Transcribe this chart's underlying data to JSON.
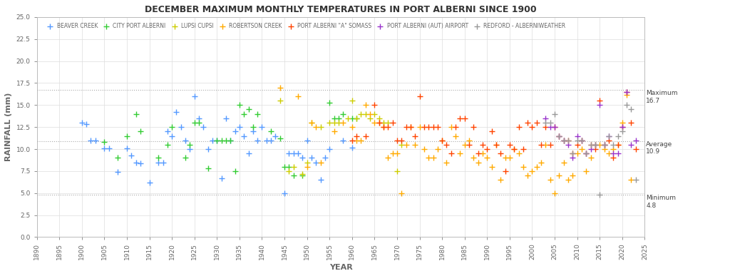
{
  "title": "DECEMBER MAXIMUM MONTHLY TEMPERATURES IN PORT ALBERNI SINCE 1900",
  "ylabel": "RAINFALL (mm)",
  "xlabel": "YEAR",
  "xlim": [
    1890,
    2025
  ],
  "ylim": [
    0,
    25
  ],
  "yticks": [
    0.0,
    2.5,
    5.0,
    7.5,
    10.0,
    12.5,
    15.0,
    17.5,
    20.0,
    22.5,
    25.0
  ],
  "xticks": [
    1890,
    1895,
    1900,
    1905,
    1910,
    1915,
    1920,
    1925,
    1930,
    1935,
    1940,
    1945,
    1950,
    1955,
    1960,
    1965,
    1970,
    1975,
    1980,
    1985,
    1990,
    1995,
    2000,
    2005,
    2010,
    2015,
    2020,
    2025
  ],
  "hlines": [
    {
      "y": 16.7,
      "label": "Maximum\n16.7"
    },
    {
      "y": 10.9,
      "label": "Average\n10.9"
    },
    {
      "y": 4.8,
      "label": "Minimum\n4.8"
    }
  ],
  "series": [
    {
      "name": "BEAVER CREEK",
      "color": "#5599ff",
      "data": [
        [
          1900,
          13.0
        ],
        [
          1901,
          12.8
        ],
        [
          1902,
          11.0
        ],
        [
          1903,
          11.0
        ],
        [
          1905,
          10.1
        ],
        [
          1906,
          10.1
        ],
        [
          1908,
          7.4
        ],
        [
          1910,
          10.1
        ],
        [
          1911,
          9.3
        ],
        [
          1912,
          8.5
        ],
        [
          1913,
          8.4
        ],
        [
          1915,
          6.2
        ],
        [
          1917,
          8.5
        ],
        [
          1918,
          8.5
        ],
        [
          1919,
          12.0
        ],
        [
          1920,
          11.5
        ],
        [
          1921,
          14.2
        ],
        [
          1922,
          12.5
        ],
        [
          1923,
          11.0
        ],
        [
          1924,
          10.0
        ],
        [
          1925,
          16.0
        ],
        [
          1926,
          13.5
        ],
        [
          1927,
          12.5
        ],
        [
          1928,
          10.0
        ],
        [
          1929,
          11.0
        ],
        [
          1930,
          11.0
        ],
        [
          1931,
          6.7
        ],
        [
          1932,
          13.5
        ],
        [
          1933,
          11.0
        ],
        [
          1934,
          12.0
        ],
        [
          1935,
          12.5
        ],
        [
          1936,
          11.5
        ],
        [
          1937,
          9.5
        ],
        [
          1938,
          12.0
        ],
        [
          1939,
          11.0
        ],
        [
          1940,
          12.5
        ],
        [
          1941,
          11.0
        ],
        [
          1942,
          11.0
        ],
        [
          1943,
          11.5
        ],
        [
          1945,
          5.0
        ],
        [
          1946,
          9.5
        ],
        [
          1947,
          9.5
        ],
        [
          1948,
          9.5
        ],
        [
          1949,
          9.0
        ],
        [
          1950,
          11.0
        ],
        [
          1951,
          9.0
        ],
        [
          1952,
          8.5
        ],
        [
          1953,
          6.5
        ],
        [
          1954,
          9.0
        ],
        [
          1955,
          10.0
        ],
        [
          1958,
          11.0
        ],
        [
          1960,
          10.2
        ]
      ]
    },
    {
      "name": "CITY PORT ALBERNI",
      "color": "#33cc33",
      "data": [
        [
          1905,
          10.8
        ],
        [
          1908,
          9.0
        ],
        [
          1910,
          11.5
        ],
        [
          1912,
          14.0
        ],
        [
          1913,
          12.0
        ],
        [
          1917,
          9.0
        ],
        [
          1919,
          10.5
        ],
        [
          1920,
          12.5
        ],
        [
          1923,
          9.0
        ],
        [
          1924,
          10.5
        ],
        [
          1925,
          13.0
        ],
        [
          1926,
          13.0
        ],
        [
          1928,
          7.8
        ],
        [
          1930,
          11.0
        ],
        [
          1931,
          11.0
        ],
        [
          1932,
          11.0
        ],
        [
          1933,
          11.0
        ],
        [
          1934,
          7.5
        ],
        [
          1935,
          15.0
        ],
        [
          1936,
          14.0
        ],
        [
          1937,
          14.5
        ],
        [
          1938,
          12.5
        ],
        [
          1939,
          14.0
        ],
        [
          1942,
          12.0
        ],
        [
          1944,
          11.2
        ],
        [
          1945,
          8.0
        ],
        [
          1946,
          8.0
        ],
        [
          1947,
          7.0
        ],
        [
          1949,
          7.0
        ],
        [
          1955,
          15.3
        ],
        [
          1956,
          13.5
        ],
        [
          1957,
          13.5
        ],
        [
          1958,
          14.0
        ],
        [
          1960,
          13.5
        ],
        [
          1961,
          13.5
        ]
      ]
    },
    {
      "name": "LUPSI CUPSI",
      "color": "#cccc00",
      "data": [
        [
          1944,
          15.5
        ],
        [
          1946,
          7.5
        ],
        [
          1947,
          8.0
        ],
        [
          1949,
          7.2
        ],
        [
          1950,
          8.5
        ],
        [
          1951,
          13.0
        ],
        [
          1953,
          12.5
        ],
        [
          1955,
          13.0
        ],
        [
          1956,
          13.0
        ],
        [
          1957,
          13.0
        ],
        [
          1959,
          13.5
        ],
        [
          1960,
          15.5
        ],
        [
          1961,
          13.5
        ],
        [
          1962,
          14.0
        ],
        [
          1963,
          14.0
        ],
        [
          1964,
          13.5
        ],
        [
          1965,
          14.0
        ],
        [
          1966,
          13.5
        ],
        [
          1967,
          13.0
        ],
        [
          1968,
          13.0
        ],
        [
          1970,
          7.5
        ],
        [
          1971,
          10.5
        ]
      ]
    },
    {
      "name": "ROBERTSON CREEK",
      "color": "#ffaa00",
      "data": [
        [
          1944,
          17.0
        ],
        [
          1948,
          16.0
        ],
        [
          1950,
          8.0
        ],
        [
          1951,
          13.0
        ],
        [
          1952,
          12.5
        ],
        [
          1953,
          8.5
        ],
        [
          1956,
          12.0
        ],
        [
          1958,
          13.0
        ],
        [
          1960,
          12.5
        ],
        [
          1961,
          11.0
        ],
        [
          1962,
          11.0
        ],
        [
          1963,
          15.0
        ],
        [
          1964,
          14.0
        ],
        [
          1965,
          13.0
        ],
        [
          1966,
          13.0
        ],
        [
          1967,
          12.5
        ],
        [
          1968,
          9.0
        ],
        [
          1969,
          9.5
        ],
        [
          1970,
          9.5
        ],
        [
          1971,
          5.0
        ],
        [
          1972,
          10.5
        ],
        [
          1973,
          12.5
        ],
        [
          1974,
          10.5
        ],
        [
          1975,
          12.5
        ],
        [
          1976,
          10.0
        ],
        [
          1977,
          9.0
        ],
        [
          1978,
          9.0
        ],
        [
          1979,
          10.0
        ],
        [
          1980,
          11.0
        ],
        [
          1981,
          8.5
        ],
        [
          1982,
          12.5
        ],
        [
          1983,
          11.5
        ],
        [
          1984,
          9.5
        ],
        [
          1985,
          10.5
        ],
        [
          1986,
          11.0
        ],
        [
          1987,
          9.0
        ],
        [
          1988,
          8.5
        ],
        [
          1989,
          9.5
        ],
        [
          1990,
          9.0
        ],
        [
          1991,
          8.0
        ],
        [
          1992,
          10.5
        ],
        [
          1993,
          6.5
        ],
        [
          1994,
          9.0
        ],
        [
          1995,
          9.0
        ],
        [
          1996,
          10.0
        ],
        [
          1997,
          9.5
        ],
        [
          1998,
          8.0
        ],
        [
          1999,
          7.0
        ],
        [
          2000,
          7.5
        ],
        [
          2001,
          8.0
        ],
        [
          2002,
          8.5
        ],
        [
          2003,
          10.5
        ],
        [
          2004,
          6.5
        ],
        [
          2005,
          5.0
        ],
        [
          2006,
          7.0
        ],
        [
          2007,
          8.5
        ],
        [
          2008,
          6.5
        ],
        [
          2009,
          7.0
        ],
        [
          2010,
          9.5
        ],
        [
          2011,
          10.0
        ],
        [
          2012,
          7.5
        ],
        [
          2013,
          9.0
        ],
        [
          2014,
          10.5
        ],
        [
          2015,
          10.5
        ],
        [
          2016,
          10.0
        ],
        [
          2017,
          9.5
        ],
        [
          2018,
          10.0
        ],
        [
          2019,
          10.5
        ],
        [
          2020,
          13.0
        ],
        [
          2021,
          16.2
        ],
        [
          2022,
          6.5
        ]
      ]
    },
    {
      "name": "PORT ALBERNI \"A\" SOMASS",
      "color": "#ff4400",
      "data": [
        [
          1960,
          11.0
        ],
        [
          1961,
          11.5
        ],
        [
          1963,
          11.5
        ],
        [
          1965,
          15.0
        ],
        [
          1966,
          13.0
        ],
        [
          1967,
          12.5
        ],
        [
          1968,
          12.5
        ],
        [
          1969,
          13.0
        ],
        [
          1970,
          11.0
        ],
        [
          1971,
          11.0
        ],
        [
          1972,
          12.5
        ],
        [
          1973,
          12.5
        ],
        [
          1974,
          11.5
        ],
        [
          1975,
          16.0
        ],
        [
          1976,
          12.5
        ],
        [
          1977,
          12.5
        ],
        [
          1978,
          12.5
        ],
        [
          1979,
          12.5
        ],
        [
          1980,
          11.0
        ],
        [
          1981,
          10.5
        ],
        [
          1982,
          9.5
        ],
        [
          1983,
          12.5
        ],
        [
          1984,
          13.5
        ],
        [
          1985,
          13.5
        ],
        [
          1986,
          10.5
        ],
        [
          1987,
          12.5
        ],
        [
          1988,
          9.5
        ],
        [
          1989,
          10.5
        ],
        [
          1990,
          10.0
        ],
        [
          1991,
          12.0
        ],
        [
          1992,
          10.5
        ],
        [
          1993,
          9.5
        ],
        [
          1994,
          7.5
        ],
        [
          1995,
          10.5
        ],
        [
          1996,
          10.0
        ],
        [
          1997,
          12.5
        ],
        [
          1998,
          10.0
        ],
        [
          1999,
          13.0
        ],
        [
          2000,
          12.5
        ],
        [
          2001,
          13.0
        ],
        [
          2002,
          10.5
        ],
        [
          2003,
          12.5
        ],
        [
          2004,
          10.5
        ],
        [
          2005,
          12.5
        ],
        [
          2006,
          11.5
        ],
        [
          2007,
          11.0
        ],
        [
          2008,
          11.0
        ],
        [
          2009,
          9.5
        ],
        [
          2010,
          10.5
        ],
        [
          2011,
          11.0
        ],
        [
          2012,
          9.5
        ],
        [
          2013,
          10.5
        ],
        [
          2014,
          10.0
        ],
        [
          2015,
          15.5
        ],
        [
          2016,
          10.5
        ],
        [
          2017,
          11.0
        ],
        [
          2018,
          9.0
        ],
        [
          2019,
          10.5
        ],
        [
          2020,
          12.5
        ],
        [
          2021,
          16.5
        ],
        [
          2022,
          13.0
        ],
        [
          2023,
          10.0
        ]
      ]
    },
    {
      "name": "PORT ALBERNI (AUT) AIRPORT",
      "color": "#9933cc",
      "data": [
        [
          2003,
          13.5
        ],
        [
          2004,
          12.5
        ],
        [
          2005,
          12.5
        ],
        [
          2006,
          11.5
        ],
        [
          2007,
          11.0
        ],
        [
          2008,
          10.5
        ],
        [
          2009,
          9.0
        ],
        [
          2010,
          11.5
        ],
        [
          2011,
          11.0
        ],
        [
          2012,
          9.5
        ],
        [
          2013,
          10.0
        ],
        [
          2014,
          10.5
        ],
        [
          2015,
          15.0
        ],
        [
          2016,
          10.5
        ],
        [
          2017,
          11.5
        ],
        [
          2018,
          9.5
        ],
        [
          2019,
          9.5
        ],
        [
          2020,
          12.5
        ],
        [
          2021,
          16.5
        ],
        [
          2022,
          10.5
        ],
        [
          2023,
          11.0
        ]
      ]
    },
    {
      "name": "REDFORD - ALBERNIWEATHER",
      "color": "#999999",
      "data": [
        [
          2003,
          13.0
        ],
        [
          2004,
          13.0
        ],
        [
          2005,
          14.0
        ],
        [
          2006,
          11.5
        ],
        [
          2007,
          11.0
        ],
        [
          2008,
          11.0
        ],
        [
          2009,
          9.5
        ],
        [
          2010,
          11.0
        ],
        [
          2011,
          11.0
        ],
        [
          2012,
          9.5
        ],
        [
          2013,
          10.5
        ],
        [
          2014,
          10.5
        ],
        [
          2015,
          4.8
        ],
        [
          2016,
          10.5
        ],
        [
          2017,
          11.5
        ],
        [
          2018,
          10.5
        ],
        [
          2019,
          11.5
        ],
        [
          2020,
          12.0
        ],
        [
          2021,
          15.0
        ],
        [
          2022,
          14.5
        ],
        [
          2023,
          6.5
        ]
      ]
    }
  ],
  "bg_color": "#ffffff",
  "grid_color": "#dddddd",
  "text_color": "#666666",
  "max_line_y": 16.7,
  "avg_line_y": 10.9,
  "min_line_y": 4.8
}
